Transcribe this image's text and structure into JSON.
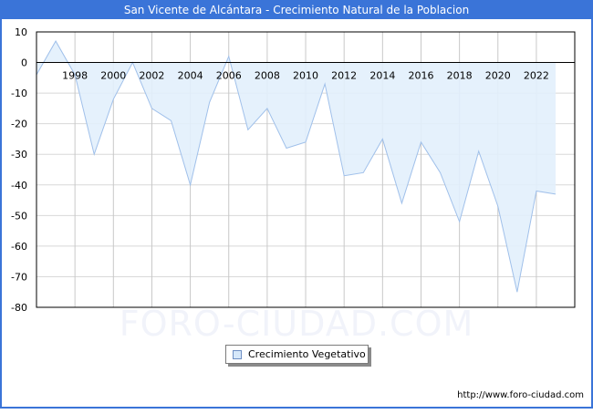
{
  "header": {
    "title": "San Vicente de Alcántara - Crecimiento Natural de la Poblacion"
  },
  "watermark": "FORO-CIUDAD.COM",
  "legend": {
    "label": "Crecimiento Vegetativo",
    "swatch_color": "#d6e8fa"
  },
  "footer": {
    "url": "http://www.foro-ciudad.com"
  },
  "colors": {
    "title_bar": "#3a74d8",
    "line": "#a0c0ea",
    "fill": "#e2effc",
    "grid": "#d8d8d8"
  },
  "chart_data": {
    "type": "area",
    "title": "San Vicente de Alcántara - Crecimiento Natural de la Poblacion",
    "xlabel": "",
    "ylabel": "",
    "ylim": [
      -80,
      10
    ],
    "xlim": [
      1996,
      2023
    ],
    "yticks": [
      10,
      0,
      -10,
      -20,
      -30,
      -40,
      -50,
      -60,
      -70,
      -80
    ],
    "xticks": [
      1998,
      2000,
      2002,
      2004,
      2006,
      2008,
      2010,
      2012,
      2014,
      2016,
      2018,
      2020,
      2022
    ],
    "grid": true,
    "legend_position": "bottom-center",
    "series": [
      {
        "name": "Crecimiento Vegetativo",
        "x": [
          1996,
          1997,
          1998,
          1999,
          2000,
          2001,
          2002,
          2003,
          2004,
          2005,
          2006,
          2007,
          2008,
          2009,
          2010,
          2011,
          2012,
          2013,
          2014,
          2015,
          2016,
          2017,
          2018,
          2019,
          2020,
          2021,
          2022,
          2023
        ],
        "values": [
          -4,
          7,
          -4,
          -30,
          -12,
          0,
          -15,
          -19,
          -40,
          -13,
          2,
          -22,
          -15,
          -28,
          -26,
          -7,
          -37,
          -36,
          -25,
          -46,
          -26,
          -36,
          -52,
          -29,
          -47,
          -75,
          -42,
          -43
        ]
      }
    ]
  }
}
